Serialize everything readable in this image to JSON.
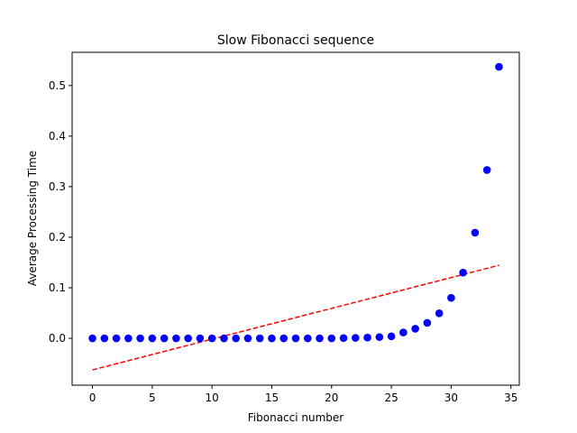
{
  "chart_data": {
    "type": "scatter",
    "title": "Slow Fibonacci sequence",
    "xlabel": "Fibonacci number",
    "ylabel": "Average Processing Time",
    "xlim": [
      -1.7,
      35.7
    ],
    "ylim": [
      -0.0927,
      0.5657
    ],
    "xticks": [
      0,
      5,
      10,
      15,
      20,
      25,
      30,
      35
    ],
    "yticks": [
      0.0,
      0.1,
      0.2,
      0.3,
      0.4,
      0.5
    ],
    "xtick_labels": [
      "0",
      "5",
      "10",
      "15",
      "20",
      "25",
      "30",
      "35"
    ],
    "ytick_labels": [
      "0.0",
      "0.1",
      "0.2",
      "0.3",
      "0.4",
      "0.5"
    ],
    "grid": false,
    "series": [
      {
        "type": "scatter",
        "color": "#0000ff",
        "marker": "circle",
        "x": [
          0,
          1,
          2,
          3,
          4,
          5,
          6,
          7,
          8,
          9,
          10,
          11,
          12,
          13,
          14,
          15,
          16,
          17,
          18,
          19,
          20,
          21,
          22,
          23,
          24,
          25,
          26,
          27,
          28,
          29,
          30,
          31,
          32,
          33,
          34
        ],
        "y": [
          0,
          0,
          0,
          0,
          0,
          0,
          0,
          0,
          0,
          0,
          0,
          0,
          0,
          0,
          0,
          0,
          0,
          0,
          0,
          0,
          0,
          0.0005,
          0.0009,
          0.0015,
          0.0025,
          0.004,
          0.0115,
          0.019,
          0.0305,
          0.0495,
          0.08,
          0.13,
          0.209,
          0.333,
          0.537
        ]
      },
      {
        "type": "line",
        "color": "#ff0000",
        "style": "dashed",
        "x": [
          0,
          34
        ],
        "y": [
          -0.0625,
          0.1445
        ]
      }
    ]
  }
}
